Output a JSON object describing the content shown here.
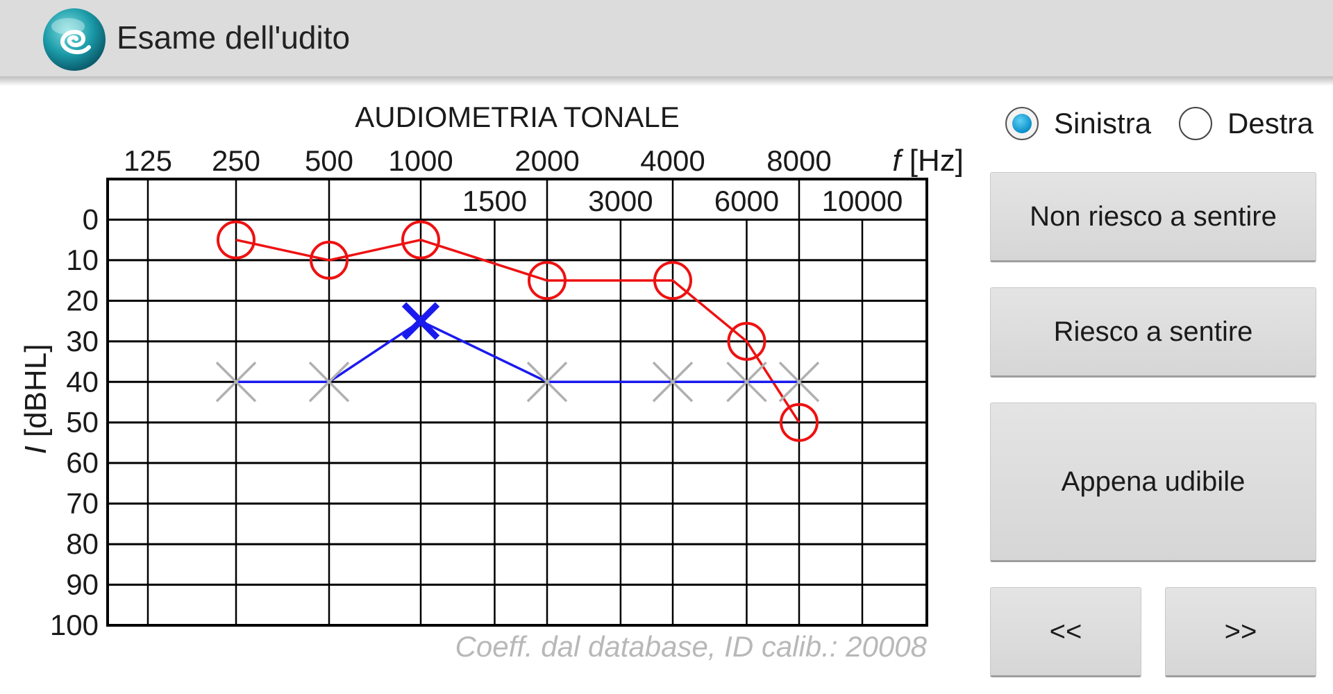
{
  "app": {
    "title": "Esame dell'udito",
    "icon": "app-logo-icon"
  },
  "chart_title": "AUDIOMETRIA TONALE",
  "footer_note": "Coeff. dal database, ID calib.: 20008",
  "ear_selector": {
    "options": [
      {
        "label": "Sinistra",
        "checked": true
      },
      {
        "label": "Destra",
        "checked": false
      }
    ]
  },
  "buttons": {
    "cannot_hear": "Non riesco a sentire",
    "can_hear": "Riesco a sentire",
    "barely_audible": "Appena udibile",
    "prev": "<<",
    "next": ">>"
  },
  "colors": {
    "right_ear": "#ee1111",
    "left_ear": "#1a1aee",
    "pending": "#b0b0b0",
    "accent": "#0b8fc9"
  },
  "chart_data": {
    "type": "line",
    "title": "AUDIOMETRIA TONALE",
    "xlabel": "f [Hz]",
    "ylabel": "I [dBHL]",
    "x_ticks_major": [
      "125",
      "250",
      "500",
      "1000",
      "2000",
      "4000",
      "8000"
    ],
    "x_ticks_minor": [
      "1500",
      "3000",
      "6000",
      "10000"
    ],
    "y_ticks": [
      "0",
      "10",
      "20",
      "30",
      "40",
      "50",
      "60",
      "70",
      "80",
      "90",
      "100"
    ],
    "ylim": [
      0,
      100
    ],
    "y_inverted": true,
    "grid": true,
    "series": [
      {
        "marker": "circle",
        "color": "#ee1111",
        "x": [
          250,
          500,
          1000,
          2000,
          4000,
          6000,
          8000
        ],
        "y": [
          5,
          10,
          5,
          15,
          15,
          30,
          50
        ]
      },
      {
        "marker": "cross",
        "color": "#1a1aee",
        "x": [
          250,
          500,
          1000,
          2000,
          4000,
          6000,
          8000
        ],
        "y": [
          40,
          40,
          25,
          40,
          40,
          40,
          40
        ],
        "point_state": [
          "pending",
          "pending",
          "measured",
          "pending",
          "pending",
          "pending",
          "pending"
        ]
      }
    ]
  }
}
